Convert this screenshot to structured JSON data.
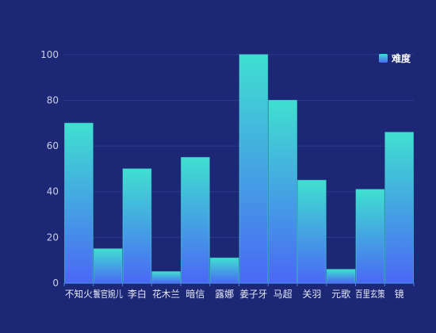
{
  "chart_data": {
    "type": "bar",
    "categories": [
      "不知火",
      "鬟官婉儿",
      "李白",
      "花木兰",
      "暗信",
      "露娜",
      "姜子牙",
      "马超",
      "关羽",
      "元歌",
      "百里玄策",
      "镜"
    ],
    "series": [
      {
        "name": "难度",
        "values": [
          70,
          15,
          50,
          5,
          55,
          11,
          100,
          80,
          45,
          6,
          41,
          66
        ]
      }
    ],
    "ylim": [
      0,
      110
    ],
    "yticks": [
      0,
      20,
      40,
      60,
      80,
      100
    ],
    "grid": true,
    "legend_position": "top-right",
    "colors": {
      "bar_top": "#3fe0d0",
      "bar_bottom": "#4a68f5",
      "grid": "#2d3a8a",
      "axis": "#4a7fe8",
      "background": "#1c2776"
    }
  }
}
